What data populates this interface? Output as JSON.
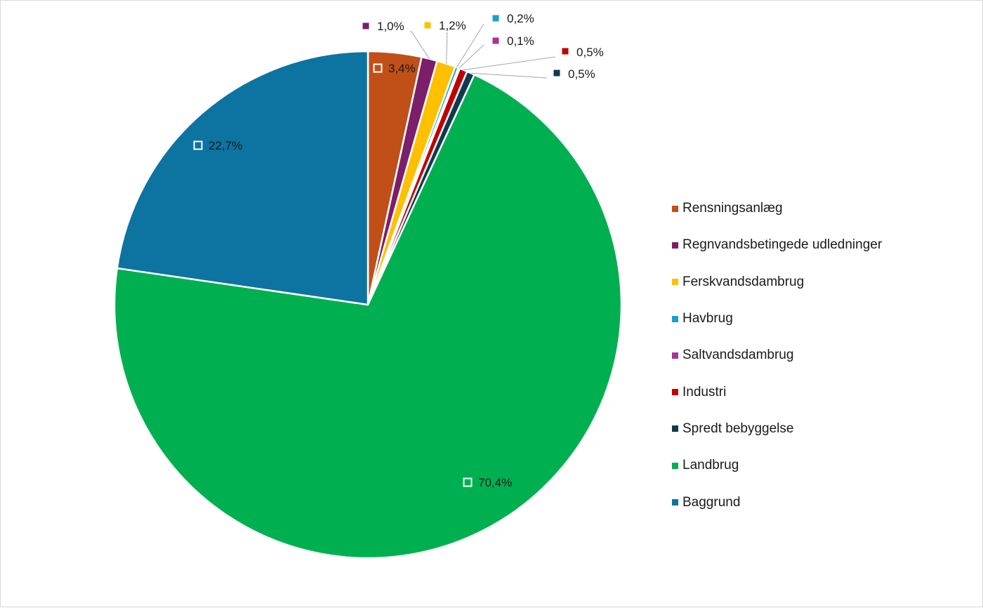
{
  "chart_data": {
    "type": "pie",
    "title": "",
    "start_angle_deg": 0,
    "direction": "clockwise",
    "legend_position": "right",
    "slices": [
      {
        "name": "Rensningsanlæg",
        "value": 3.4,
        "label": "3,4%",
        "color": "#c05018",
        "label_placement": "inside"
      },
      {
        "name": "Regnvandsbetingede udledninger",
        "value": 1.0,
        "label": "1,0%",
        "color": "#7b1f6a",
        "label_placement": "outside"
      },
      {
        "name": "Ferskvandsdambrug",
        "value": 1.2,
        "label": "1,2%",
        "color": "#ffc000",
        "label_placement": "outside"
      },
      {
        "name": "Havbrug",
        "value": 0.2,
        "label": "0,2%",
        "color": "#1a9fd1",
        "label_placement": "outside"
      },
      {
        "name": "Saltvandsdambrug",
        "value": 0.1,
        "label": "0,1%",
        "color": "#a63399",
        "label_placement": "outside"
      },
      {
        "name": "Industri",
        "value": 0.5,
        "label": "0,5%",
        "color": "#c00000",
        "label_placement": "outside"
      },
      {
        "name": "Spredt bebyggelse",
        "value": 0.5,
        "label": "0,5%",
        "color": "#0e3a4f",
        "label_placement": "outside"
      },
      {
        "name": "Landbrug",
        "value": 70.4,
        "label": "70,4%",
        "color": "#00b050",
        "label_placement": "inside"
      },
      {
        "name": "Baggrund",
        "value": 22.7,
        "label": "22,7%",
        "color": "#0d73a0",
        "label_placement": "inside"
      }
    ]
  }
}
